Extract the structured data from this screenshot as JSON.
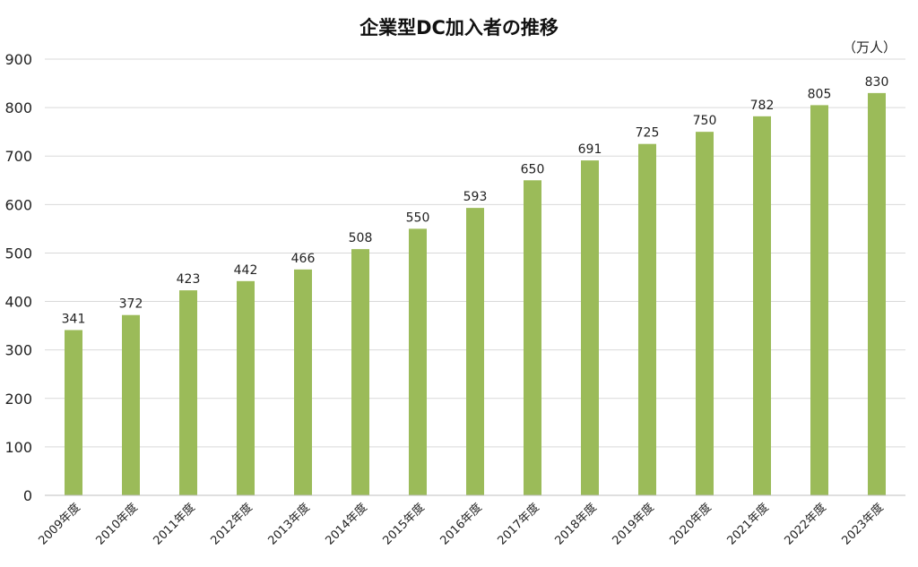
{
  "chart_data": {
    "type": "bar",
    "title": "企業型DC加入者の推移",
    "unit_label": "（万人）",
    "categories": [
      "2009年度",
      "2010年度",
      "2011年度",
      "2012年度",
      "2013年度",
      "2014年度",
      "2015年度",
      "2016年度",
      "2017年度",
      "2018年度",
      "2019年度",
      "2020年度",
      "2021年度",
      "2022年度",
      "2023年度"
    ],
    "values": [
      341,
      372,
      423,
      442,
      466,
      508,
      550,
      593,
      650,
      691,
      725,
      750,
      782,
      805,
      830
    ],
    "ylim": [
      0,
      900
    ],
    "yticks": [
      0,
      100,
      200,
      300,
      400,
      500,
      600,
      700,
      800,
      900
    ],
    "grid": true,
    "legend": "none",
    "bar_color": "#9bbb59"
  }
}
